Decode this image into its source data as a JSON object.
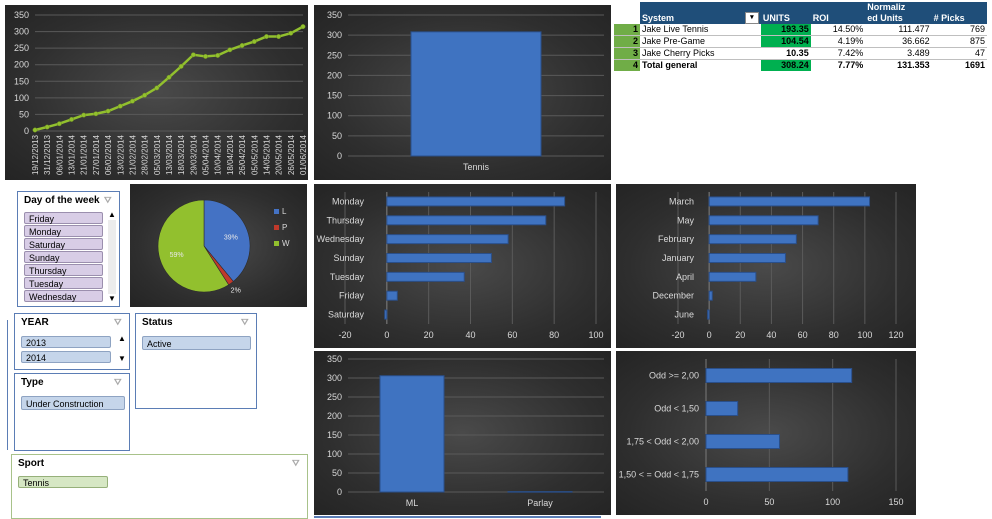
{
  "colors": {
    "line": "#92c02e",
    "bar_blue": "#3f73c1",
    "pie_L": "#4472c4",
    "pie_P": "#c0392b",
    "pie_W": "#92c02e",
    "pivot_header": "#1f4e79",
    "pivot_units": "#00b050",
    "pivot_rownum": "#70ad47"
  },
  "pivot": {
    "headers": {
      "system": "System",
      "units": "UNITS",
      "roi": "ROI",
      "normalized_line1": "Normaliz",
      "normalized_line2": "ed Units",
      "picks": "# Picks"
    },
    "filter_icon": "filter-dropdown-icon",
    "rows": [
      {
        "n": "1",
        "system": "Jake Live Tennis",
        "units": "193.35",
        "roi": "14.50%",
        "norm": "111.477",
        "picks": "769"
      },
      {
        "n": "2",
        "system": "Jake Pre-Game",
        "units": "104.54",
        "roi": "4.19%",
        "norm": "36.662",
        "picks": "875"
      },
      {
        "n": "3",
        "system": "Jake Cherry Picks",
        "units": "10.35",
        "roi": "7.42%",
        "norm": "3.489",
        "picks": "47"
      }
    ],
    "total": {
      "n": "4",
      "system": "Total general",
      "units": "308.24",
      "roi": "7.77%",
      "norm": "131.353",
      "picks": "1691"
    }
  },
  "slicers": {
    "day": {
      "title": "Day of the week",
      "items": [
        "Friday",
        "Monday",
        "Saturday",
        "Sunday",
        "Thursday",
        "Tuesday",
        "Wednesday"
      ]
    },
    "year": {
      "title": "YEAR",
      "items": [
        "2013",
        "2014"
      ]
    },
    "status": {
      "title": "Status",
      "items": [
        "Active"
      ]
    },
    "type": {
      "title": "Type",
      "items": [
        "Under Construction"
      ]
    },
    "sport": {
      "title": "Sport",
      "items": [
        "Tennis"
      ]
    },
    "clear_icon": "clear-filter-icon",
    "scroll_up": "▲",
    "scroll_down": "▼"
  },
  "chart_data": [
    {
      "id": "cumulative",
      "type": "line",
      "x": [
        "19/12/2013",
        "31/12/2013",
        "06/01/2014",
        "13/01/2014",
        "21/01/2014",
        "27/01/2014",
        "06/02/2014",
        "13/02/2014",
        "21/02/2014",
        "28/02/2014",
        "05/03/2014",
        "13/03/2014",
        "18/03/2014",
        "29/03/2014",
        "05/04/2014",
        "10/04/2014",
        "18/04/2014",
        "26/04/2014",
        "05/05/2014",
        "14/05/2014",
        "20/05/2014",
        "26/05/2014",
        "01/06/2014"
      ],
      "values": [
        3,
        12,
        22,
        35,
        48,
        52,
        60,
        75,
        90,
        108,
        130,
        162,
        195,
        230,
        225,
        228,
        245,
        258,
        270,
        285,
        285,
        295,
        315
      ],
      "ylim": [
        0,
        350
      ],
      "yticks": [
        0,
        50,
        100,
        150,
        200,
        250,
        300,
        350
      ],
      "grid": true
    },
    {
      "id": "sport",
      "type": "bar",
      "categories": [
        "Tennis"
      ],
      "values": [
        308.24
      ],
      "ylim": [
        0,
        350
      ],
      "yticks": [
        0,
        50,
        100,
        150,
        200,
        250,
        300,
        350
      ],
      "grid": true
    },
    {
      "id": "outcome",
      "type": "pie",
      "categories": [
        "L",
        "P",
        "W"
      ],
      "values": [
        39,
        2,
        59
      ],
      "labels": [
        "39%",
        "2%",
        "59%"
      ],
      "legend": "right"
    },
    {
      "id": "weekday",
      "type": "bar",
      "orientation": "horizontal",
      "categories": [
        "Monday",
        "Thursday",
        "Wednesday",
        "Sunday",
        "Tuesday",
        "Friday",
        "Saturday"
      ],
      "values": [
        85,
        76,
        58,
        50,
        37,
        5,
        -1
      ],
      "xlim": [
        -20,
        100
      ],
      "xticks": [
        -20,
        0,
        20,
        40,
        60,
        80,
        100
      ],
      "grid": true
    },
    {
      "id": "month",
      "type": "bar",
      "orientation": "horizontal",
      "categories": [
        "March",
        "May",
        "February",
        "January",
        "April",
        "December",
        "June"
      ],
      "values": [
        103,
        70,
        56,
        49,
        30,
        2,
        -1
      ],
      "xlim": [
        -20,
        120
      ],
      "xticks": [
        -20,
        0,
        20,
        40,
        60,
        80,
        100,
        120
      ],
      "grid": true
    },
    {
      "id": "bettype",
      "type": "bar",
      "categories": [
        "ML",
        "Parlay"
      ],
      "values": [
        306,
        1
      ],
      "ylim": [
        0,
        350
      ],
      "yticks": [
        0,
        50,
        100,
        150,
        200,
        250,
        300,
        350
      ],
      "grid": true
    },
    {
      "id": "odds",
      "type": "bar",
      "orientation": "horizontal",
      "categories": [
        "Odd >= 2,00",
        "Odd < 1,50",
        "1,75 < Odd < 2,00",
        "1,50 < = Odd < 1,75"
      ],
      "values": [
        115,
        25,
        58,
        112
      ],
      "xlim": [
        0,
        150
      ],
      "xticks": [
        0,
        50,
        100,
        150
      ],
      "grid": true
    }
  ]
}
